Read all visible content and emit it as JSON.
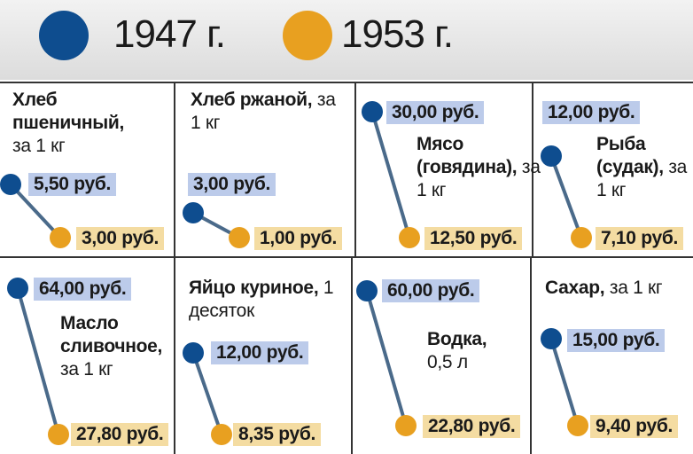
{
  "legend": [
    {
      "label": "1947 г."
    },
    {
      "label": "1953 г."
    }
  ],
  "items": [
    {
      "name": "Хлеб пшеничный,",
      "unit": "за 1 кг",
      "price_1947": "5,50 руб.",
      "price_1953": "3,00 руб."
    },
    {
      "name": "Хлеб ржаной,",
      "unit": "за 1 кг",
      "price_1947": "3,00 руб.",
      "price_1953": "1,00 руб."
    },
    {
      "name": "Мясо (говядина),",
      "unit": "за 1 кг",
      "price_1947": "30,00 руб.",
      "price_1953": "12,50 руб."
    },
    {
      "name": "Рыба (судак),",
      "unit": "за 1 кг",
      "price_1947": "12,00 руб.",
      "price_1953": "7,10 руб."
    },
    {
      "name": "Масло сливочное,",
      "unit": "за 1 кг",
      "price_1947": "64,00 руб.",
      "price_1953": "27,80 руб."
    },
    {
      "name": "Яйцо куриное,",
      "unit": "1 десяток",
      "price_1947": "12,00 руб.",
      "price_1953": "8,35 руб."
    },
    {
      "name": "Водка,",
      "unit": "0,5 л",
      "price_1947": "60,00 руб.",
      "price_1953": "22,80 руб."
    },
    {
      "name": "Сахар,",
      "unit": "за 1 кг",
      "price_1947": "15,00 руб.",
      "price_1953": "9,40 руб."
    }
  ]
}
